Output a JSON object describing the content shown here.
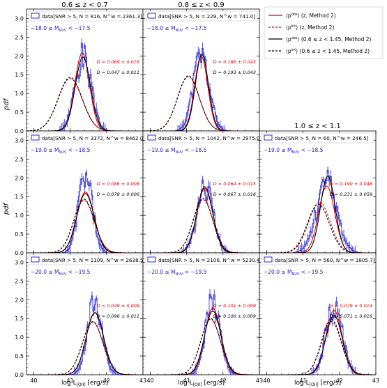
{
  "figure": {
    "ylabel": "pdf",
    "xlabel_main": "log L",
    "xlabel_sub": "[OII]",
    "xlabel_unit": "[erg/s]",
    "column_titles": [
      "0.6 ≤ z < 0.7",
      "0.8 ≤ z < 0.9",
      "1.0 ≤ z < 1.1"
    ],
    "row_mag_labels": [
      "−18.0 ≤ M",
      "−19.0 ≤ M",
      "−20.0 ≤ M"
    ],
    "row_mag_upper": [
      "< −17.5",
      "< −18.5",
      "< −19.5"
    ],
    "mag_sub": "NUV",
    "legend": [
      {
        "sym": "p",
        "sup": "obs",
        "text": "(z, Method 2)",
        "color": "#e00000",
        "dash": false
      },
      {
        "sym": "p",
        "sup": "int",
        "text": "(z, Method 2)",
        "color": "#e00000",
        "dash": true
      },
      {
        "sym": "p",
        "sup": "obs",
        "text": "(0.6 ≤ z < 1.45, Method 2)",
        "color": "#000000",
        "dash": false
      },
      {
        "sym": "p",
        "sup": "int",
        "text": "(0.6 ≤ z < 1.45, Method 2)",
        "color": "#000000",
        "dash": true
      }
    ],
    "colors": {
      "hist": "#2b2bd6",
      "obs_z": "#e00000",
      "obs_all": "#000000",
      "mag_text": "#1a1acc"
    }
  },
  "chart_data": {
    "type": "line",
    "xlim": [
      39.8,
      43.0
    ],
    "ylim": [
      0,
      3.25
    ],
    "xticks": [
      40,
      41,
      42,
      43
    ],
    "yticks": [
      0.0,
      0.5,
      1.0,
      1.5,
      2.0,
      2.5,
      3.0
    ],
    "panels": [
      {
        "row": 0,
        "col": 0,
        "data_label": "data[SNR > 5, N = 816, N^w = 2361.3]",
        "D_red": "D = 0.069 ± 0.016",
        "D_black": "D = 0.047 ± 0.011",
        "curves": {
          "obs_z": {
            "mu": 41.33,
            "sigma": 0.2,
            "peak": 2.08
          },
          "int_z": {
            "mu": 41.0,
            "sigma": 0.33,
            "peak": 1.4
          },
          "obs_all": {
            "mu": 41.35,
            "sigma": 0.21,
            "peak": 1.97
          },
          "int_all": {
            "mu": 41.0,
            "sigma": 0.33,
            "peak": 1.43
          }
        },
        "hist": {
          "mu": 41.35,
          "sigma": 0.22,
          "peak": 1.95,
          "seed": 3
        }
      },
      {
        "row": 0,
        "col": 1,
        "data_label": "data[SNR > 5, N = 229, N^w = 741.0]",
        "D_red": "D = 0.186 ± 0.043",
        "D_black": "D = 0.193 ± 0.043",
        "curves": {
          "obs_z": {
            "mu": 41.4,
            "sigma": 0.18,
            "peak": 2.0
          },
          "int_z": {
            "mu": 41.05,
            "sigma": 0.3,
            "peak": 1.45
          },
          "obs_all": {
            "mu": 41.42,
            "sigma": 0.18,
            "peak": 2.04
          },
          "int_all": {
            "mu": 41.05,
            "sigma": 0.3,
            "peak": 1.47
          }
        },
        "hist": {
          "mu": 41.4,
          "sigma": 0.22,
          "peak": 1.95,
          "seed": 11
        }
      },
      {
        "row": 1,
        "col": 0,
        "data_label": "data[SNR > 5, N = 3372, N^w = 8462.0]",
        "D_red": "D = 0.086 ± 0.008",
        "D_black": "D = 0.078 ± 0.006",
        "curves": {
          "obs_z": {
            "mu": 41.42,
            "sigma": 0.24,
            "peak": 1.62
          },
          "int_z": {
            "mu": 41.38,
            "sigma": 0.28,
            "peak": 1.4
          },
          "obs_all": {
            "mu": 41.42,
            "sigma": 0.24,
            "peak": 1.58
          },
          "int_all": {
            "mu": 41.38,
            "sigma": 0.28,
            "peak": 1.43
          }
        },
        "hist": {
          "mu": 41.42,
          "sigma": 0.19,
          "peak": 2.05,
          "seed": 5
        }
      },
      {
        "row": 1,
        "col": 1,
        "data_label": "data[SNR > 5, N = 1042, N^w = 2975.0]",
        "D_red": "D = 0.064 ± 0.015",
        "D_black": "D = 0.067 ± 0.016",
        "curves": {
          "obs_z": {
            "mu": 41.5,
            "sigma": 0.22,
            "peak": 1.72
          },
          "int_z": {
            "mu": 41.45,
            "sigma": 0.27,
            "peak": 1.42
          },
          "obs_all": {
            "mu": 41.5,
            "sigma": 0.22,
            "peak": 1.76
          },
          "int_all": {
            "mu": 41.45,
            "sigma": 0.27,
            "peak": 1.45
          }
        },
        "hist": {
          "mu": 41.5,
          "sigma": 0.22,
          "peak": 1.75,
          "seed": 17
        }
      },
      {
        "row": 1,
        "col": 2,
        "data_label": "data[SNR > 5, N = 60, N^w = 246.5]",
        "D_red": "D = 0.190 ± 0.048",
        "D_black": "D = 0.231 ± 0.059",
        "curves": {
          "obs_z": {
            "mu": 41.65,
            "sigma": 0.22,
            "peak": 1.78
          },
          "int_z": {
            "mu": 41.45,
            "sigma": 0.3,
            "peak": 1.35
          },
          "obs_all": {
            "mu": 41.68,
            "sigma": 0.2,
            "peak": 2.05
          },
          "int_all": {
            "mu": 41.42,
            "sigma": 0.3,
            "peak": 1.3
          }
        },
        "hist": {
          "mu": 41.65,
          "sigma": 0.28,
          "peak": 1.85,
          "seed": 23
        }
      },
      {
        "row": 2,
        "col": 0,
        "data_label": "data[SNR > 5, N = 1109, N^w = 2638.5]",
        "D_red": "D = 0.049 ± 0.009",
        "D_black": "D = 0.096 ± 0.011",
        "curves": {
          "obs_z": {
            "mu": 41.68,
            "sigma": 0.24,
            "peak": 1.66
          },
          "int_z": {
            "mu": 41.62,
            "sigma": 0.28,
            "peak": 1.4
          },
          "obs_all": {
            "mu": 41.68,
            "sigma": 0.24,
            "peak": 1.65
          },
          "int_all": {
            "mu": 41.62,
            "sigma": 0.28,
            "peak": 1.42
          }
        },
        "hist": {
          "mu": 41.68,
          "sigma": 0.2,
          "peak": 1.9,
          "seed": 7
        }
      },
      {
        "row": 2,
        "col": 1,
        "data_label": "data[SNR > 5, N = 2106, N^w = 5230.4]",
        "D_red": "D = 0.101 ± 0.009",
        "D_black": "D = 0.100 ± 0.009",
        "curves": {
          "obs_z": {
            "mu": 41.72,
            "sigma": 0.22,
            "peak": 1.78
          },
          "int_z": {
            "mu": 41.66,
            "sigma": 0.27,
            "peak": 1.48
          },
          "obs_all": {
            "mu": 41.72,
            "sigma": 0.23,
            "peak": 1.7
          },
          "int_all": {
            "mu": 41.66,
            "sigma": 0.27,
            "peak": 1.5
          }
        },
        "hist": {
          "mu": 41.72,
          "sigma": 0.2,
          "peak": 1.92,
          "seed": 13
        }
      },
      {
        "row": 2,
        "col": 2,
        "data_label": "data[SNR > 5, N = 560, N^w = 1805.7]",
        "D_red": "D = 0.079 ± 0.014",
        "D_black": "D = 0.071 ± 0.018",
        "curves": {
          "obs_z": {
            "mu": 41.85,
            "sigma": 0.22,
            "peak": 1.72
          },
          "int_z": {
            "mu": 41.78,
            "sigma": 0.27,
            "peak": 1.42
          },
          "obs_all": {
            "mu": 41.85,
            "sigma": 0.23,
            "peak": 1.58
          },
          "int_all": {
            "mu": 41.78,
            "sigma": 0.27,
            "peak": 1.48
          }
        },
        "hist": {
          "mu": 41.85,
          "sigma": 0.22,
          "peak": 1.85,
          "seed": 29
        }
      }
    ]
  }
}
